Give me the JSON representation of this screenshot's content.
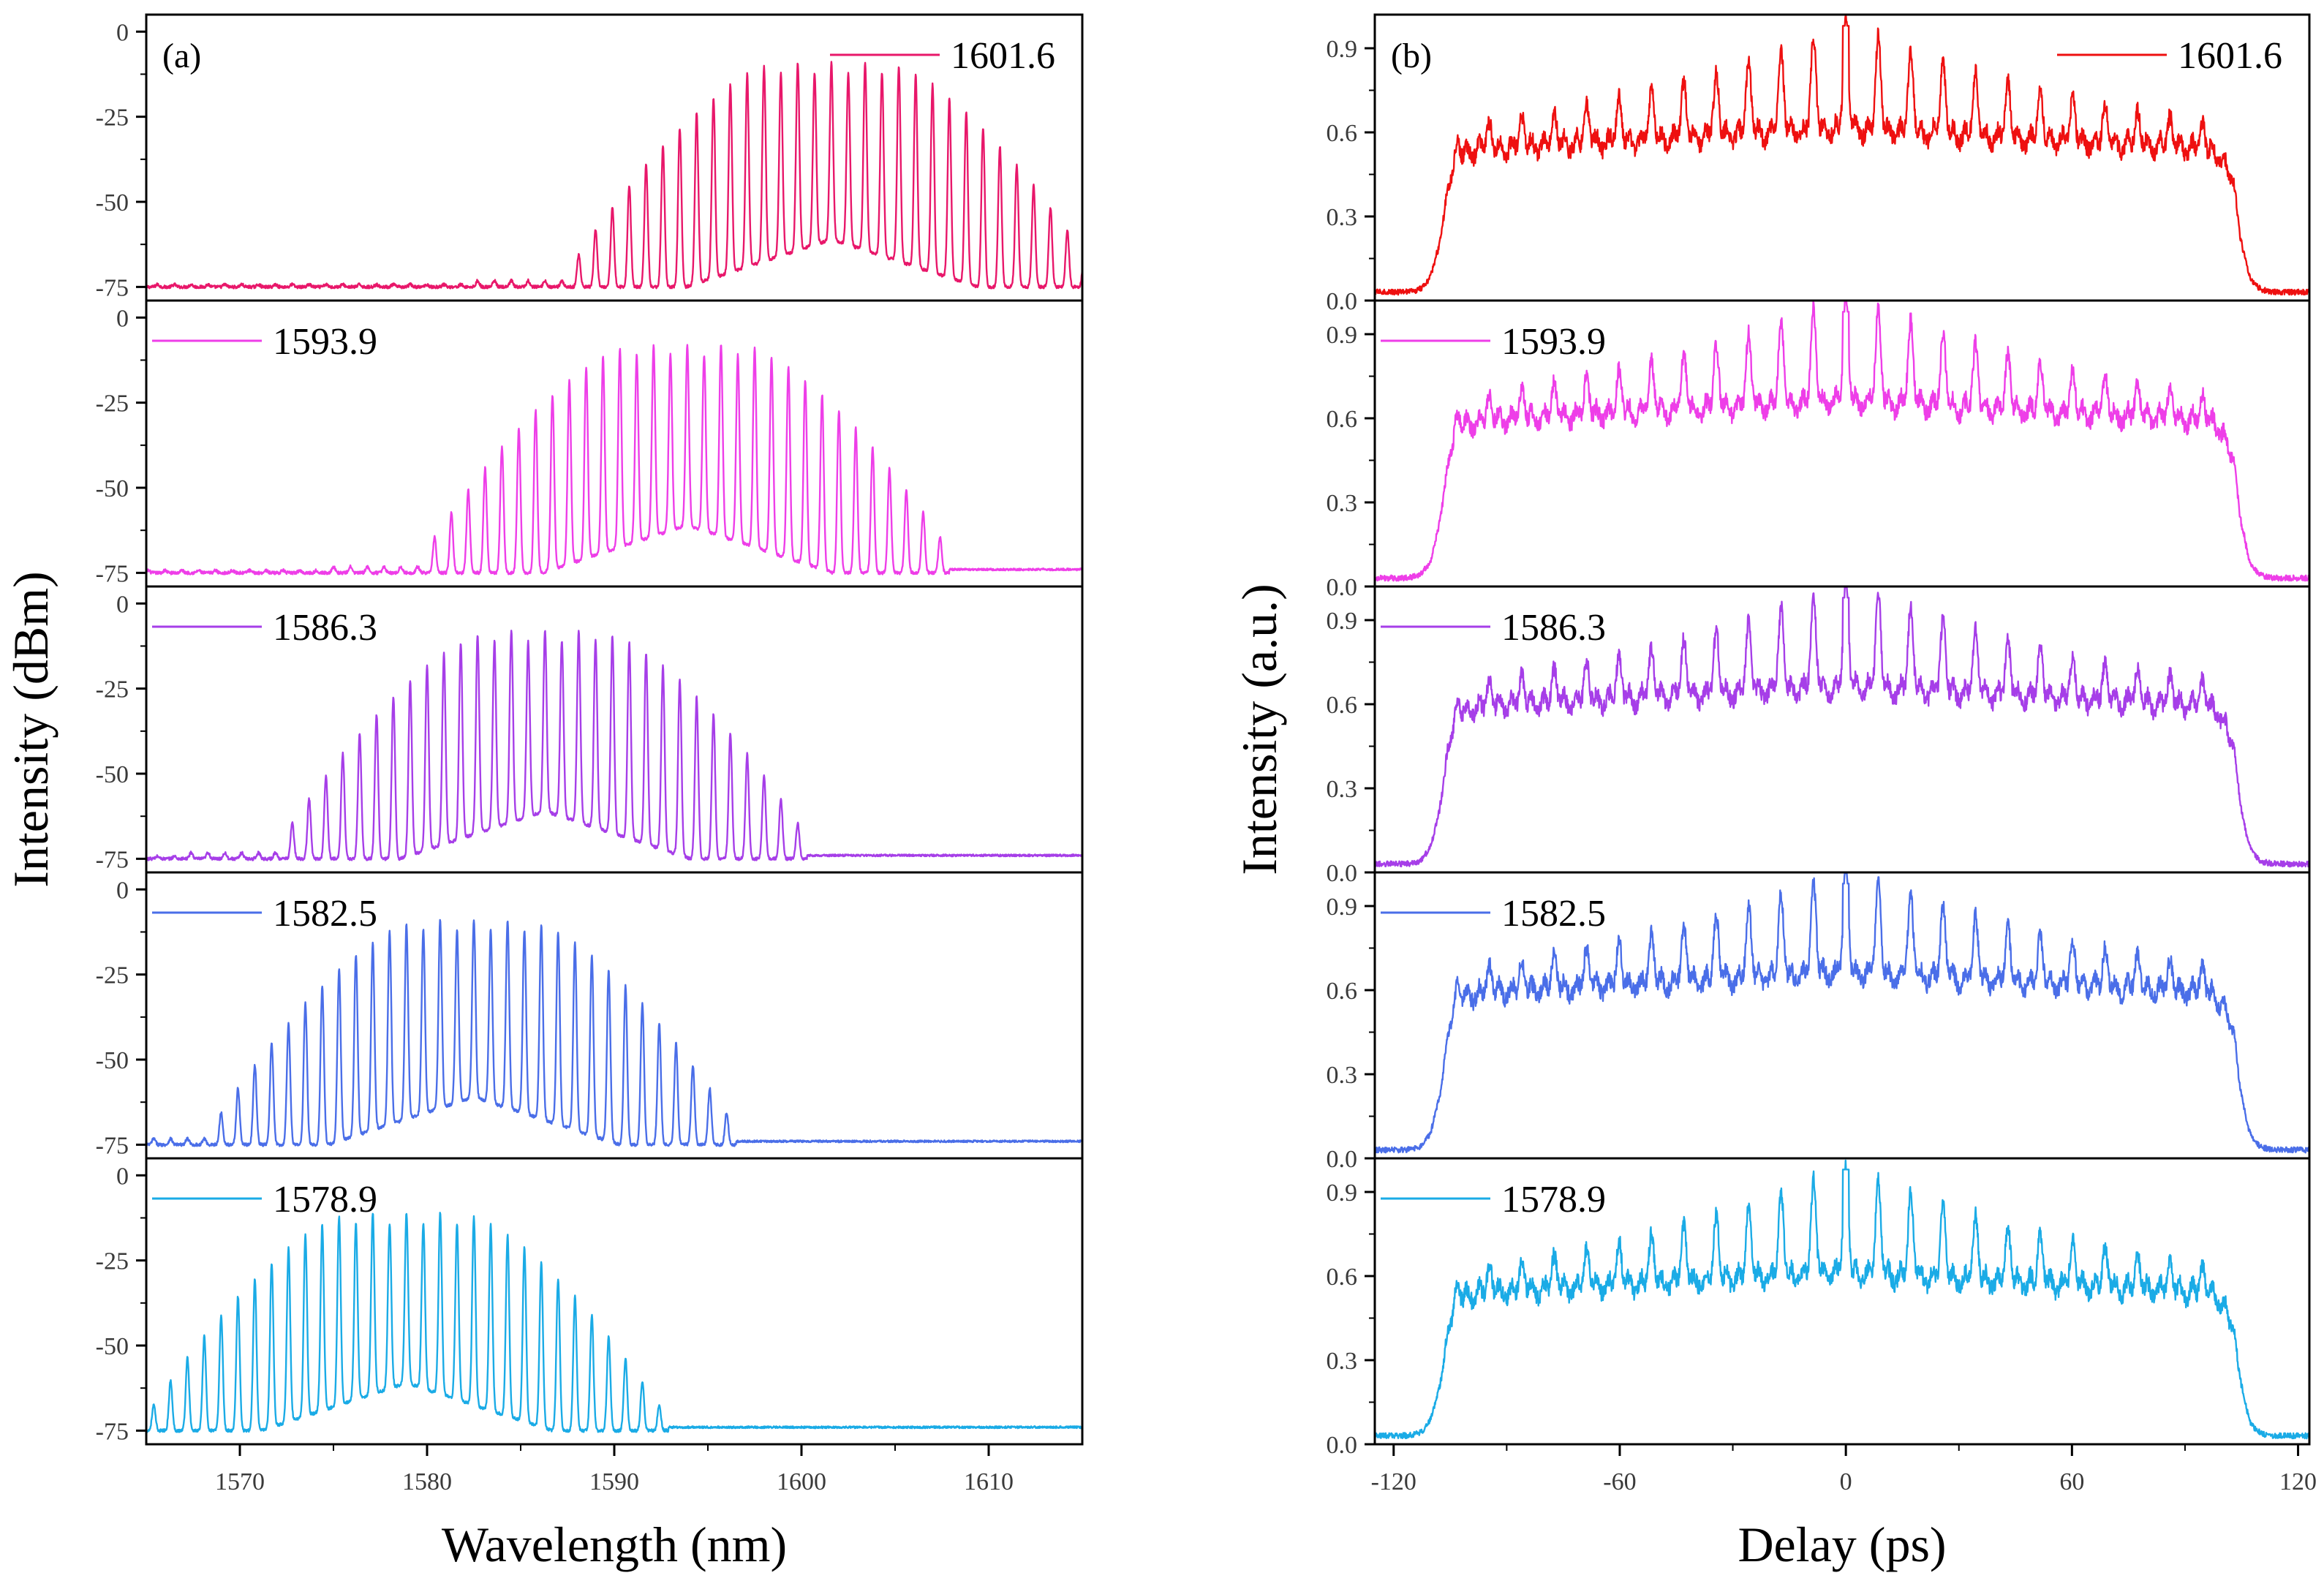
{
  "chart_data": [
    {
      "type": "line",
      "panel_label": "(a)",
      "xlabel": "Wavelength (nm)",
      "ylabel": "Intensity (dBm)",
      "xlim": [
        1565,
        1615
      ],
      "xticks": [
        1570,
        1580,
        1590,
        1600,
        1610
      ],
      "xtick_labels": [
        "1570",
        "1580",
        "1590",
        "1600",
        "1610"
      ],
      "ylim_per_subplot": [
        -79,
        5
      ],
      "yticks": [
        0,
        -25,
        -50,
        -75
      ],
      "ytick_labels": [
        "0",
        "-25",
        "-50",
        "-75"
      ],
      "comb_spacing_nm": 0.9,
      "series": [
        {
          "name": "1601.6",
          "color": "#e8176a",
          "center_nm": 1601.6,
          "peak_dbm": -9,
          "floor_dbm": -75,
          "legend_position": "top-right"
        },
        {
          "name": "1593.9",
          "color": "#ee3ee8",
          "center_nm": 1593.9,
          "peak_dbm": -8,
          "floor_dbm": -75,
          "legend_position": "top-left"
        },
        {
          "name": "1586.3",
          "color": "#a63ee8",
          "center_nm": 1586.3,
          "peak_dbm": -8,
          "floor_dbm": -75,
          "legend_position": "top-left"
        },
        {
          "name": "1582.5",
          "color": "#4a6ee8",
          "center_nm": 1582.5,
          "peak_dbm": -9,
          "floor_dbm": -75,
          "legend_position": "top-left"
        },
        {
          "name": "1578.9",
          "color": "#1aabe6",
          "center_nm": 1578.9,
          "peak_dbm": -11,
          "floor_dbm": -75,
          "legend_position": "top-left"
        }
      ]
    },
    {
      "type": "line",
      "panel_label": "(b)",
      "xlabel": "Delay (ps)",
      "ylabel": "Intensity (a.u.)",
      "xlim": [
        -125,
        123
      ],
      "xticks": [
        -120,
        -60,
        0,
        60,
        120
      ],
      "xtick_labels": [
        "-120",
        "-60",
        "0",
        "60",
        "120"
      ],
      "ylim_per_subplot": [
        0,
        1.02
      ],
      "yticks": [
        0,
        0.3,
        0.6,
        0.9
      ],
      "ytick_labels": [
        "0.0",
        "0.3",
        "0.6",
        "0.9"
      ],
      "pulse_window_ps": [
        -107,
        104
      ],
      "peak_spacing_ps": 8.6,
      "series": [
        {
          "name": "1601.6",
          "color": "#ee1010",
          "pedestal_level": 0.55,
          "max_level": 1.0,
          "legend_position": "top-right"
        },
        {
          "name": "1593.9",
          "color": "#ee3ee8",
          "pedestal_level": 0.6,
          "max_level": 1.0,
          "legend_position": "top-left"
        },
        {
          "name": "1586.3",
          "color": "#a63ee8",
          "pedestal_level": 0.6,
          "max_level": 1.0,
          "legend_position": "top-left"
        },
        {
          "name": "1582.5",
          "color": "#4a6ee8",
          "pedestal_level": 0.6,
          "max_level": 1.0,
          "legend_position": "top-left"
        },
        {
          "name": "1578.9",
          "color": "#1aabe6",
          "pedestal_level": 0.55,
          "max_level": 1.0,
          "legend_position": "top-left"
        }
      ]
    }
  ]
}
